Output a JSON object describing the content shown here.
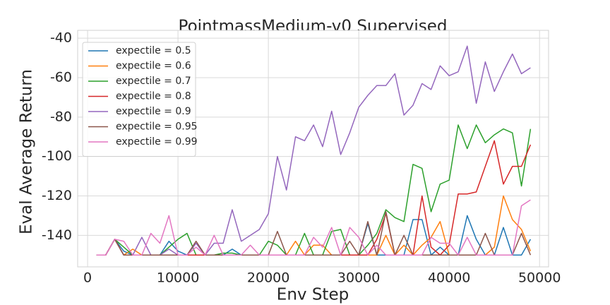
{
  "chart_data": {
    "type": "line",
    "title": "PointmassMedium-v0 Supervised",
    "xlabel": "Env Step",
    "ylabel": "Eval Average Return",
    "x": [
      1000,
      2000,
      3000,
      4000,
      5000,
      6000,
      7000,
      8000,
      9000,
      10000,
      11000,
      12000,
      13000,
      14000,
      15000,
      16000,
      17000,
      18000,
      19000,
      20000,
      21000,
      22000,
      23000,
      24000,
      25000,
      26000,
      27000,
      28000,
      29000,
      30000,
      31000,
      32000,
      33000,
      34000,
      35000,
      36000,
      37000,
      38000,
      39000,
      40000,
      41000,
      42000,
      43000,
      44000,
      45000,
      46000,
      47000,
      48000,
      49000
    ],
    "series": [
      {
        "name": "expectile = 0.5",
        "color": "#1f77b4",
        "values": [
          -150,
          -150,
          -142,
          -148,
          -150,
          -150,
          -150,
          -150,
          -143,
          -148,
          -150,
          -150,
          -150,
          -150,
          -150,
          -147,
          -150,
          -150,
          -150,
          -150,
          -150,
          -150,
          -150,
          -150,
          -150,
          -150,
          -150,
          -150,
          -150,
          -150,
          -134,
          -150,
          -150,
          -150,
          -150,
          -132,
          -132,
          -150,
          -146,
          -150,
          -150,
          -130,
          -142,
          -150,
          -150,
          -136,
          -150,
          -150,
          -142
        ]
      },
      {
        "name": "expectile = 0.6",
        "color": "#ff7f0e",
        "values": [
          -150,
          -150,
          -142,
          -150,
          -147,
          -150,
          -150,
          -150,
          -150,
          -150,
          -150,
          -150,
          -150,
          -150,
          -150,
          -150,
          -150,
          -150,
          -150,
          -150,
          -150,
          -150,
          -143,
          -150,
          -145,
          -145,
          -150,
          -150,
          -150,
          -150,
          -150,
          -150,
          -140,
          -150,
          -145,
          -150,
          -145,
          -141,
          -133,
          -150,
          -150,
          -150,
          -150,
          -150,
          -146,
          -120,
          -132,
          -137,
          -148
        ]
      },
      {
        "name": "expectile = 0.7",
        "color": "#2ca02c",
        "values": [
          -150,
          -150,
          -142,
          -146,
          -150,
          -150,
          -150,
          -150,
          -146,
          -142,
          -139,
          -150,
          -150,
          -150,
          -149,
          -149,
          -150,
          -150,
          -150,
          -143,
          -145,
          -150,
          -150,
          -139,
          -150,
          -150,
          -138,
          -137,
          -150,
          -150,
          -145,
          -139,
          -127,
          -131,
          -133,
          -104,
          -106,
          -128,
          -114,
          -112,
          -84,
          -96,
          -84,
          -93,
          -89,
          -86,
          -88,
          -115,
          -86
        ]
      },
      {
        "name": "expectile = 0.8",
        "color": "#d62728",
        "values": [
          -150,
          -150,
          -142,
          -150,
          -150,
          -150,
          -150,
          -150,
          -150,
          -150,
          -150,
          -150,
          -150,
          -150,
          -150,
          -150,
          -150,
          -150,
          -150,
          -150,
          -150,
          -150,
          -150,
          -150,
          -150,
          -150,
          -150,
          -150,
          -150,
          -150,
          -150,
          -142,
          -129,
          -150,
          -150,
          -150,
          -120,
          -146,
          -150,
          -145,
          -119,
          -119,
          -118,
          -105,
          -92,
          -114,
          -105,
          -105,
          -94
        ]
      },
      {
        "name": "expectile = 0.9",
        "color": "#9467bd",
        "values": [
          -150,
          -150,
          -142,
          -150,
          -150,
          -141,
          -150,
          -150,
          -147,
          -150,
          -150,
          -144,
          -150,
          -144,
          -144,
          -127,
          -143,
          -140,
          -137,
          -129,
          -100,
          -117,
          -90,
          -92,
          -84,
          -95,
          -77,
          -99,
          -88,
          -75,
          -69,
          -64,
          -64,
          -58,
          -79,
          -74,
          -63,
          -66,
          -54,
          -59,
          -57,
          -44,
          -73,
          -52,
          -67,
          -57,
          -48,
          -58,
          -55
        ]
      },
      {
        "name": "expectile = 0.95",
        "color": "#8c564b",
        "values": [
          -150,
          -150,
          -142,
          -150,
          -150,
          -150,
          -150,
          -150,
          -150,
          -150,
          -150,
          -143,
          -150,
          -150,
          -150,
          -150,
          -150,
          -150,
          -150,
          -150,
          -138,
          -150,
          -150,
          -150,
          -150,
          -150,
          -150,
          -150,
          -143,
          -150,
          -133,
          -150,
          -128,
          -150,
          -140,
          -150,
          -150,
          -150,
          -150,
          -150,
          -150,
          -150,
          -150,
          -139,
          -150,
          -150,
          -150,
          -139,
          -150
        ]
      },
      {
        "name": "expectile = 0.99",
        "color": "#e377c2",
        "values": [
          -150,
          -150,
          -142,
          -143,
          -150,
          -150,
          -139,
          -144,
          -130,
          -150,
          -150,
          -146,
          -150,
          -140,
          -150,
          -150,
          -150,
          -145,
          -150,
          -150,
          -150,
          -150,
          -150,
          -150,
          -141,
          -146,
          -136,
          -150,
          -136,
          -141,
          -150,
          -145,
          -150,
          -150,
          -150,
          -150,
          -150,
          -141,
          -144,
          -144,
          -150,
          -141,
          -150,
          -150,
          -150,
          -150,
          -150,
          -125,
          -122
        ]
      }
    ],
    "xlim": [
      -1100,
      51000
    ],
    "ylim": [
      -156,
      -36
    ],
    "xticks": [
      0,
      10000,
      20000,
      30000,
      40000,
      50000
    ],
    "yticks": [
      -140,
      -120,
      -100,
      -80,
      -60,
      -40
    ],
    "grid": true,
    "legend": "upper left"
  }
}
